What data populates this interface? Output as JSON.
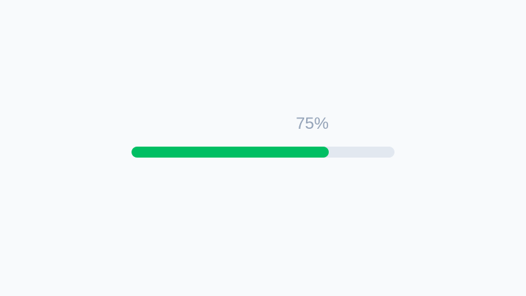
{
  "progress": {
    "value": 75,
    "label": "75%",
    "fill_color": "#00bf63",
    "track_color": "#e2e8f0",
    "label_color": "#94a3b8"
  }
}
